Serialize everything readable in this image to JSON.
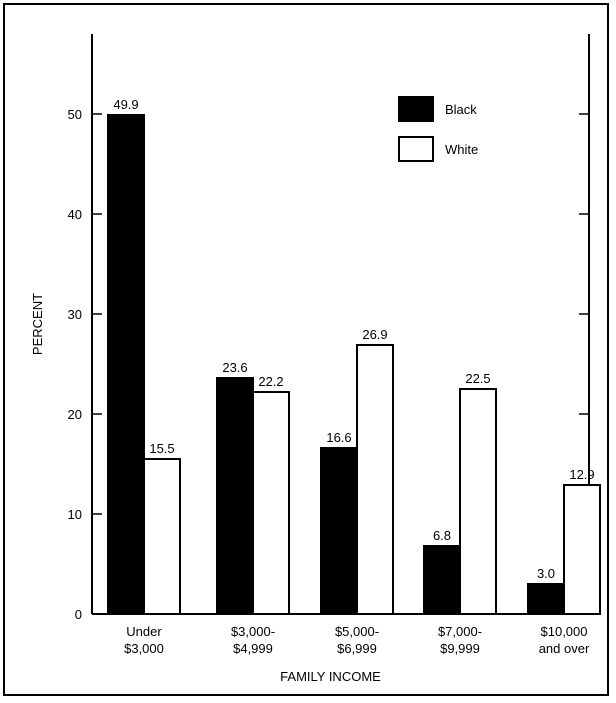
{
  "chart_data": {
    "type": "bar",
    "title": "",
    "xlabel": "FAMILY INCOME",
    "ylabel": "PERCENT",
    "ylim": [
      0,
      58
    ],
    "yticks": [
      0,
      10,
      20,
      30,
      40,
      50
    ],
    "categories": [
      [
        "Under",
        "$3,000"
      ],
      [
        "$3,000-",
        "$4,999"
      ],
      [
        "$5,000-",
        "$6,999"
      ],
      [
        "$7,000-",
        "$9,999"
      ],
      [
        "$10,000",
        "and over"
      ]
    ],
    "series": [
      {
        "name": "Black",
        "color": "#000000",
        "values": [
          49.9,
          23.6,
          16.6,
          6.8,
          3.0
        ]
      },
      {
        "name": "White",
        "color": "#ffffff",
        "values": [
          15.5,
          22.2,
          26.9,
          22.5,
          12.9
        ]
      }
    ],
    "value_labels": [
      [
        "49.9",
        "23.6",
        "16.6",
        "6.8",
        "3.0"
      ],
      [
        "15.5",
        "22.2",
        "26.9",
        "22.5",
        "12.9"
      ]
    ],
    "grid": false,
    "legend_position": "top-right"
  }
}
